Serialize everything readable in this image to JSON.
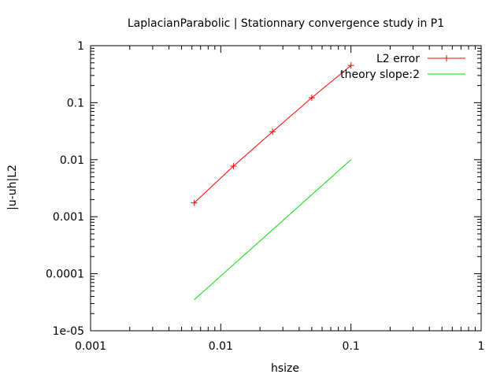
{
  "chart_data": {
    "type": "line",
    "title": "LaplacianParabolic | Stationnary convergence study in P1",
    "xlabel": "hsize",
    "ylabel": "|u-uh|L2",
    "xscale": "log",
    "yscale": "log",
    "xlim": [
      0.001,
      1
    ],
    "ylim": [
      1e-05,
      1
    ],
    "x_ticks": [
      "0.001",
      "0.01",
      "0.1",
      "1"
    ],
    "y_ticks": [
      "1e-05",
      "0.0001",
      "0.001",
      "0.01",
      "0.1",
      "1"
    ],
    "grid": false,
    "legend_position": "top-right",
    "series": [
      {
        "name": "L2 error",
        "color": "#ff0000",
        "marker": "plus",
        "x": [
          0.00625,
          0.0125,
          0.025,
          0.05,
          0.1
        ],
        "y": [
          0.00175,
          0.0077,
          0.031,
          0.122,
          0.45
        ]
      },
      {
        "name": "theory slope:2",
        "color": "#00dd00",
        "marker": "none",
        "x": [
          0.00625,
          0.1
        ],
        "y": [
          3.5e-05,
          0.01
        ]
      }
    ]
  }
}
